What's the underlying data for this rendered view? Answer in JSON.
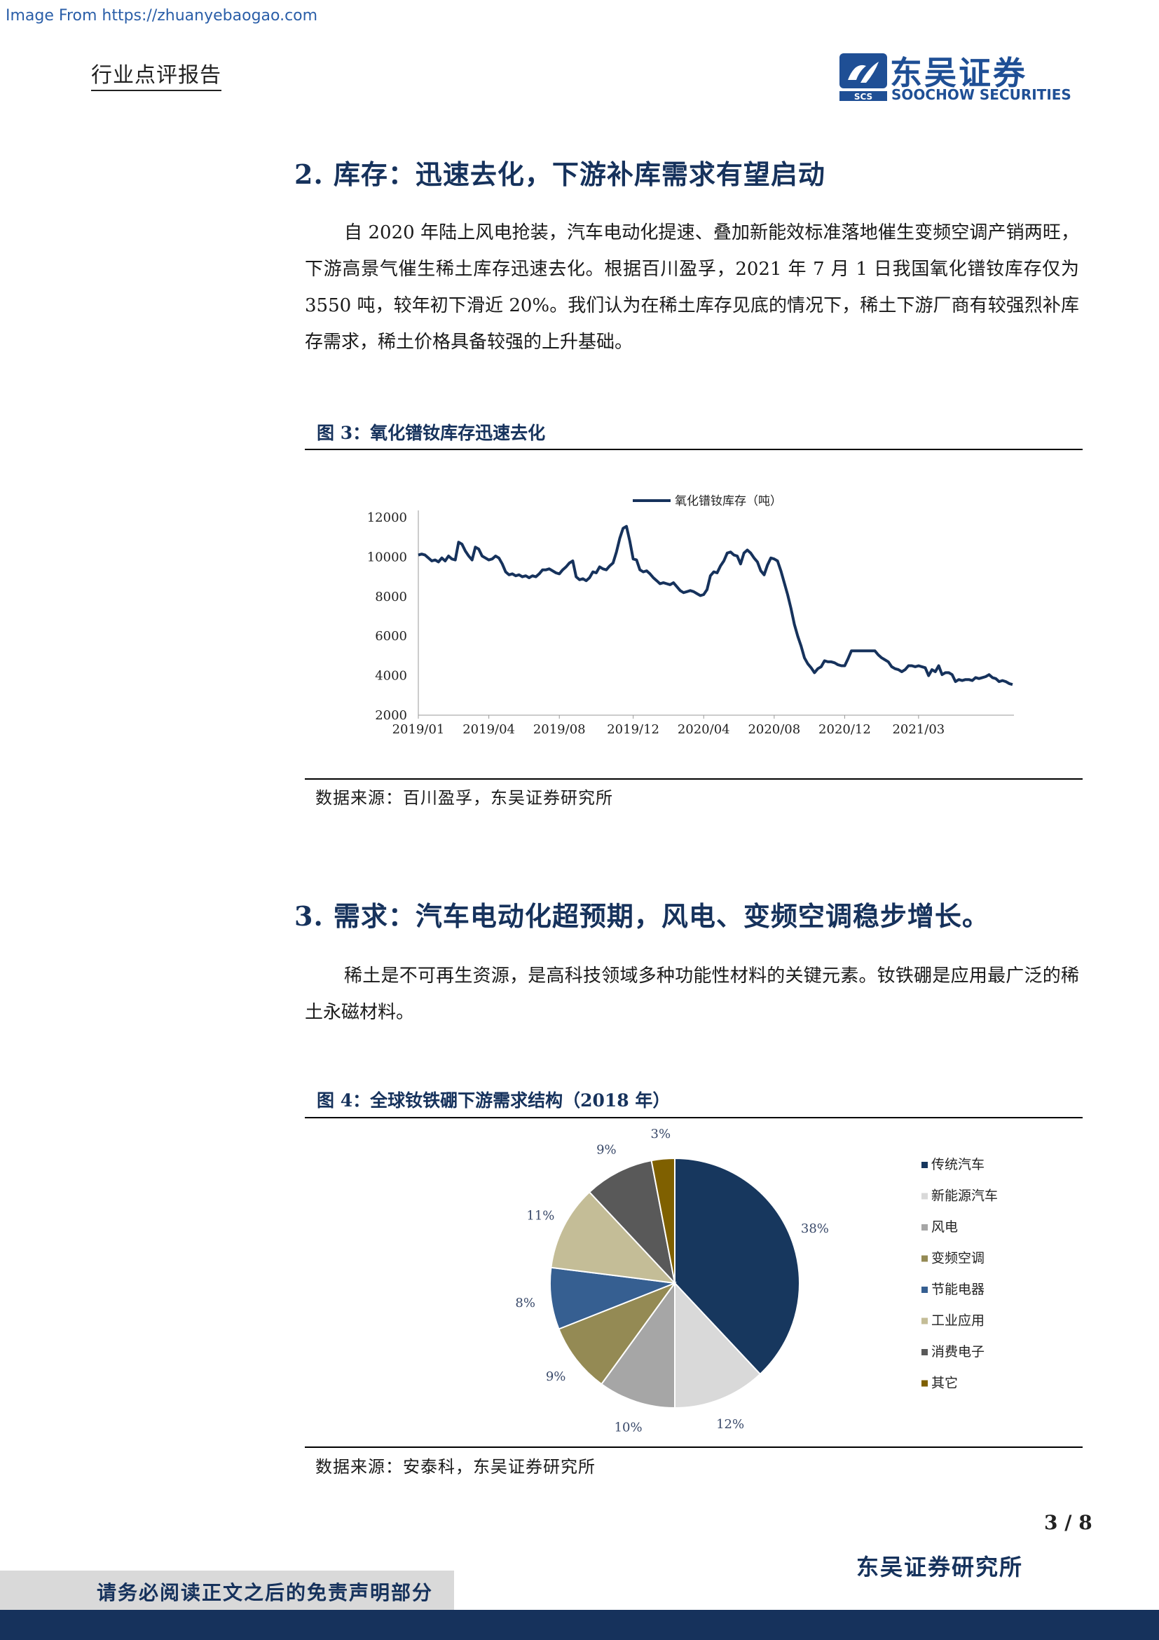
{
  "watermark": "Image From https://zhuanyebaogao.com",
  "header": {
    "doc_type": "行业点评报告",
    "logo_cn": "东吴证券",
    "logo_en": "SOOCHOW SECURITIES",
    "logo_mark": "SCS"
  },
  "section2": {
    "title": "2. 库存：迅速去化，下游补库需求有望启动",
    "paragraph": "自 2020 年陆上风电抢装，汽车电动化提速、叠加新能效标准落地催生变频空调产销两旺，下游高景气催生稀土库存迅速去化。根据百川盈孚，2021 年 7 月 1 日我国氧化镨钕库存仅为 3550 吨，较年初下滑近 20%。我们认为在稀土库存见底的情况下，稀土下游厂商有较强烈补库存需求，稀土价格具备较强的上升基础。"
  },
  "figure3": {
    "title": "图 3：氧化镨钕库存迅速去化",
    "source": "数据来源：百川盈孚，东吴证券研究所"
  },
  "section3": {
    "title": "3. 需求：汽车电动化超预期，风电、变频空调稳步增长。",
    "paragraph": "稀土是不可再生资源，是高科技领域多种功能性材料的关键元素。钕铁硼是应用最广泛的稀土永磁材料。"
  },
  "figure4": {
    "title": "图 4：全球钕铁硼下游需求结构（2018 年）",
    "source": "数据来源：安泰科，东吴证券研究所"
  },
  "footer": {
    "page": "3 / 8",
    "institute": "东吴证券研究所",
    "disclaimer": "请务必阅读正文之后的免责声明部分"
  },
  "chart_data": [
    {
      "type": "line",
      "series": [
        {
          "name": "氧化镨钕库存（吨）",
          "color": "#16325c",
          "values": [
            10100,
            10150,
            10100,
            9950,
            9800,
            9850,
            9750,
            9950,
            9800,
            10050,
            9900,
            9850,
            10750,
            10650,
            10300,
            10050,
            9850,
            10500,
            10400,
            10050,
            9950,
            9850,
            9900,
            10050,
            9950,
            9650,
            9250,
            9100,
            9150,
            9050,
            9100,
            9000,
            9050,
            8950,
            9050,
            9000,
            9150,
            9350,
            9350,
            9400,
            9300,
            9200,
            9150,
            9350,
            9500,
            9700,
            9800,
            9000,
            8850,
            8900,
            8800,
            8950,
            9250,
            9200,
            9500,
            9400,
            9350,
            9550,
            9700,
            10250,
            10950,
            11450,
            11550,
            10800,
            9900,
            9850,
            9350,
            9250,
            9300,
            9150,
            8950,
            8800,
            8650,
            8700,
            8650,
            8600,
            8700,
            8500,
            8300,
            8200,
            8250,
            8300,
            8250,
            8150,
            8050,
            8100,
            8350,
            9050,
            9250,
            9200,
            9550,
            9800,
            10200,
            10250,
            10100,
            10050,
            9650,
            10200,
            10350,
            10200,
            9950,
            9750,
            9300,
            9100,
            9600,
            9950,
            9900,
            9800,
            9300,
            8700,
            8100,
            7400,
            6600,
            6000,
            5500,
            4900,
            4600,
            4400,
            4150,
            4350,
            4450,
            4750,
            4700,
            4700,
            4650,
            4550,
            4500,
            4500,
            4850,
            5250,
            5250,
            5250,
            5250,
            5250,
            5250,
            5250,
            5250,
            5050,
            4900,
            4800,
            4700,
            4450,
            4350,
            4300,
            4200,
            4300,
            4500,
            4500,
            4450,
            4500,
            4450,
            4400,
            4000,
            4300,
            4200,
            4500,
            4050,
            4150,
            4150,
            4050,
            3700,
            3800,
            3750,
            3800,
            3800,
            3750,
            3900,
            3850,
            3900,
            3950,
            4050,
            3900,
            3850,
            3700,
            3750,
            3700,
            3600,
            3550
          ]
        }
      ],
      "x_ticks": [
        "2019/01",
        "2019/04",
        "2019/08",
        "2019/12",
        "2020/04",
        "2020/08",
        "2020/12",
        "2021/03"
      ],
      "y_ticks": [
        "2000",
        "4000",
        "6000",
        "8000",
        "10000",
        "12000"
      ],
      "ylim": [
        2000,
        12000
      ],
      "legend_position": "top"
    },
    {
      "type": "pie",
      "slices": [
        {
          "label": "传统汽车",
          "value": 38,
          "display": "38%",
          "color": "#17375e"
        },
        {
          "label": "新能源汽车",
          "value": 12,
          "display": "12%",
          "color": "#d9d9d9"
        },
        {
          "label": "风电",
          "value": 10,
          "display": "10%",
          "color": "#a6a6a6"
        },
        {
          "label": "变频空调",
          "value": 9,
          "display": "9%",
          "color": "#948a54"
        },
        {
          "label": "节能电器",
          "value": 8,
          "display": "8%",
          "color": "#365f91"
        },
        {
          "label": "工业应用",
          "value": 11,
          "display": "11%",
          "color": "#c4bd97"
        },
        {
          "label": "消费电子",
          "value": 9,
          "display": "9%",
          "color": "#595959"
        },
        {
          "label": "其它",
          "value": 3,
          "display": "3%",
          "color": "#7f6000"
        }
      ],
      "legend_position": "right"
    }
  ]
}
